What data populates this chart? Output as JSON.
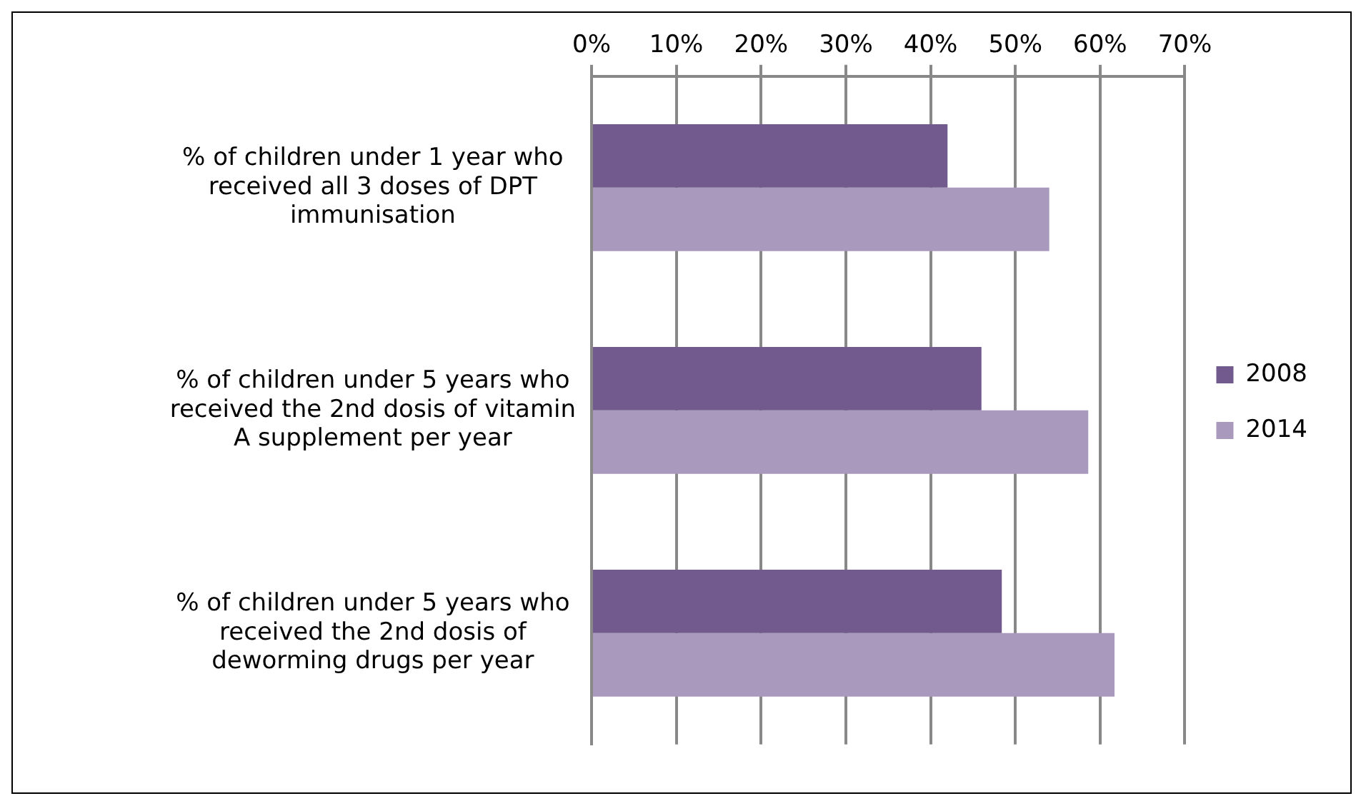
{
  "chart_data": {
    "type": "bar",
    "orientation": "horizontal",
    "categories": [
      "% of children under 1 year who received all 3 doses of DPT immunisation",
      "% of children under 5 years who received the 2nd dosis of vitamin A supplement per year",
      "% of children under 5 years who received the 2nd dosis of deworming drugs per year"
    ],
    "series": [
      {
        "name": "2008",
        "color": "#725a8e",
        "values": [
          42,
          46,
          48.4
        ]
      },
      {
        "name": "2014",
        "color": "#a999bd",
        "values": [
          54,
          58.6,
          61.7
        ]
      }
    ],
    "xlim": [
      0,
      70
    ],
    "xticks": [
      {
        "value": 0,
        "label": "0%"
      },
      {
        "value": 10,
        "label": "10%"
      },
      {
        "value": 20,
        "label": "20%"
      },
      {
        "value": 30,
        "label": "30%"
      },
      {
        "value": 40,
        "label": "40%"
      },
      {
        "value": 50,
        "label": "50%"
      },
      {
        "value": 60,
        "label": "60%"
      },
      {
        "value": 70,
        "label": "70%"
      }
    ],
    "grid": "x",
    "legend": "right"
  }
}
